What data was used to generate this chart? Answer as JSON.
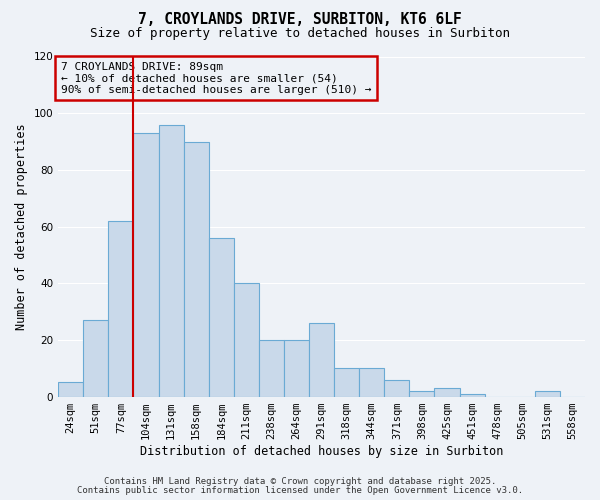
{
  "title": "7, CROYLANDS DRIVE, SURBITON, KT6 6LF",
  "subtitle": "Size of property relative to detached houses in Surbiton",
  "xlabel": "Distribution of detached houses by size in Surbiton",
  "ylabel": "Number of detached properties",
  "bar_color": "#c9d9ea",
  "bar_edge_color": "#6aaad4",
  "background_color": "#eef2f7",
  "plot_bg_color": "#eef2f7",
  "categories": [
    "24sqm",
    "51sqm",
    "77sqm",
    "104sqm",
    "131sqm",
    "158sqm",
    "184sqm",
    "211sqm",
    "238sqm",
    "264sqm",
    "291sqm",
    "318sqm",
    "344sqm",
    "371sqm",
    "398sqm",
    "425sqm",
    "451sqm",
    "478sqm",
    "505sqm",
    "531sqm",
    "558sqm"
  ],
  "values": [
    5,
    27,
    62,
    93,
    96,
    90,
    56,
    40,
    20,
    20,
    26,
    10,
    10,
    6,
    2,
    3,
    1,
    0,
    0,
    2,
    0
  ],
  "ylim": [
    0,
    120
  ],
  "yticks": [
    0,
    20,
    40,
    60,
    80,
    100,
    120
  ],
  "vline_color": "#cc0000",
  "annotation_box_text": "7 CROYLANDS DRIVE: 89sqm\n← 10% of detached houses are smaller (54)\n90% of semi-detached houses are larger (510) →",
  "annotation_box_color": "#cc0000",
  "footer_line1": "Contains HM Land Registry data © Crown copyright and database right 2025.",
  "footer_line2": "Contains public sector information licensed under the Open Government Licence v3.0.",
  "grid_color": "#ffffff",
  "title_fontsize": 10.5,
  "subtitle_fontsize": 9,
  "tick_fontsize": 7.5,
  "label_fontsize": 8.5,
  "footer_fontsize": 6.5,
  "annot_fontsize": 8
}
